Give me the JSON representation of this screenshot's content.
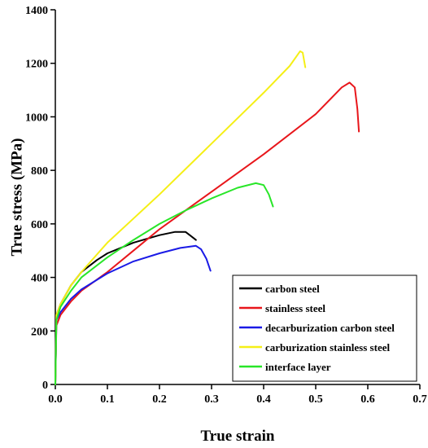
{
  "chart_data": {
    "type": "line",
    "title": "",
    "xlabel": "True strain",
    "ylabel": "True stress (MPa)",
    "xlim": [
      0,
      0.7
    ],
    "ylim": [
      0,
      1400
    ],
    "xticks": [
      0.0,
      0.1,
      0.2,
      0.3,
      0.4,
      0.5,
      0.6,
      0.7
    ],
    "yticks": [
      0,
      200,
      400,
      600,
      800,
      1000,
      1200,
      1400
    ],
    "xtick_labels": [
      "0.0",
      "0.1",
      "0.2",
      "0.3",
      "0.4",
      "0.5",
      "0.6",
      "0.7"
    ],
    "ytick_labels": [
      "0",
      "200",
      "400",
      "600",
      "800",
      "1000",
      "1200",
      "1400"
    ],
    "grid": false,
    "legend_position": "bottom-right",
    "series": [
      {
        "name": "carbon steel",
        "color": "#000000",
        "points": [
          [
            0,
            0
          ],
          [
            0.002,
            260
          ],
          [
            0.01,
            300
          ],
          [
            0.03,
            370
          ],
          [
            0.05,
            420
          ],
          [
            0.08,
            465
          ],
          [
            0.1,
            490
          ],
          [
            0.15,
            530
          ],
          [
            0.2,
            558
          ],
          [
            0.23,
            570
          ],
          [
            0.25,
            570
          ],
          [
            0.26,
            555
          ],
          [
            0.27,
            540
          ]
        ]
      },
      {
        "name": "stainless steel",
        "color": "#e8161b",
        "points": [
          [
            0,
            0
          ],
          [
            0.002,
            220
          ],
          [
            0.01,
            260
          ],
          [
            0.03,
            310
          ],
          [
            0.05,
            350
          ],
          [
            0.1,
            420
          ],
          [
            0.15,
            500
          ],
          [
            0.2,
            580
          ],
          [
            0.3,
            720
          ],
          [
            0.4,
            860
          ],
          [
            0.5,
            1010
          ],
          [
            0.55,
            1110
          ],
          [
            0.565,
            1128
          ],
          [
            0.575,
            1110
          ],
          [
            0.58,
            1030
          ],
          [
            0.583,
            945
          ]
        ]
      },
      {
        "name": "decarburization carbon steel",
        "color": "#1a1ae6",
        "points": [
          [
            0,
            0
          ],
          [
            0.002,
            240
          ],
          [
            0.01,
            270
          ],
          [
            0.03,
            320
          ],
          [
            0.05,
            355
          ],
          [
            0.1,
            415
          ],
          [
            0.15,
            460
          ],
          [
            0.2,
            490
          ],
          [
            0.24,
            510
          ],
          [
            0.27,
            518
          ],
          [
            0.28,
            505
          ],
          [
            0.29,
            470
          ],
          [
            0.298,
            425
          ]
        ]
      },
      {
        "name": "carburization stainless steel",
        "color": "#f5ef16",
        "points": [
          [
            0,
            0
          ],
          [
            0.002,
            260
          ],
          [
            0.01,
            300
          ],
          [
            0.03,
            370
          ],
          [
            0.05,
            420
          ],
          [
            0.1,
            530
          ],
          [
            0.15,
            620
          ],
          [
            0.2,
            710
          ],
          [
            0.3,
            900
          ],
          [
            0.4,
            1090
          ],
          [
            0.45,
            1190
          ],
          [
            0.47,
            1245
          ],
          [
            0.475,
            1240
          ],
          [
            0.48,
            1185
          ]
        ]
      },
      {
        "name": "interface layer",
        "color": "#28e628",
        "points": [
          [
            0,
            0
          ],
          [
            0.002,
            240
          ],
          [
            0.01,
            290
          ],
          [
            0.03,
            350
          ],
          [
            0.05,
            400
          ],
          [
            0.1,
            475
          ],
          [
            0.15,
            540
          ],
          [
            0.2,
            600
          ],
          [
            0.25,
            650
          ],
          [
            0.3,
            695
          ],
          [
            0.35,
            735
          ],
          [
            0.385,
            752
          ],
          [
            0.4,
            745
          ],
          [
            0.41,
            710
          ],
          [
            0.418,
            665
          ]
        ]
      }
    ]
  }
}
